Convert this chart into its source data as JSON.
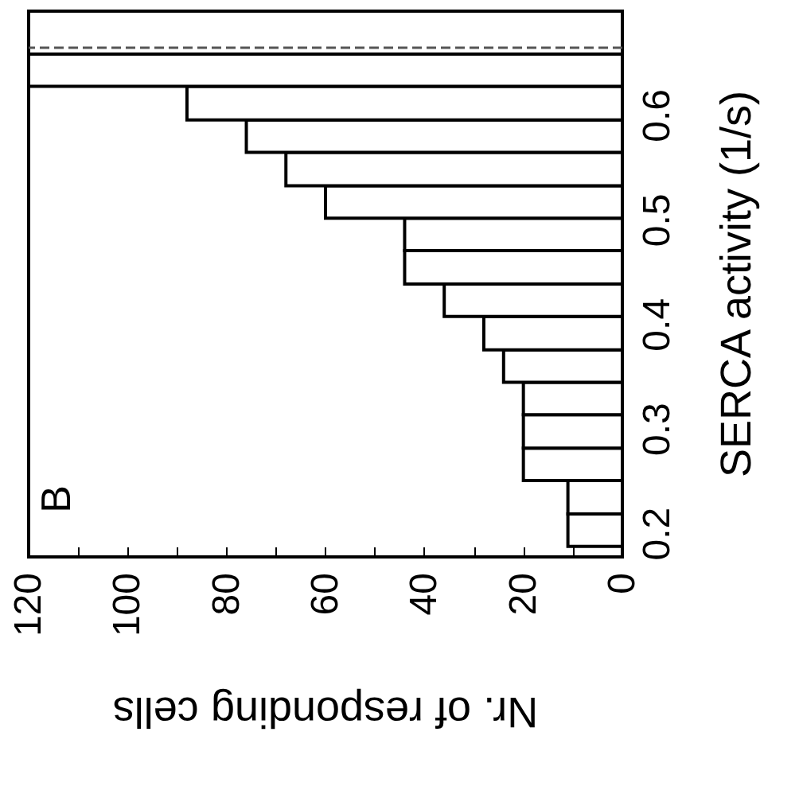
{
  "chart_data": {
    "type": "histogram",
    "orientation": "horizontal",
    "xlabel": "Nr. of responding cells",
    "ylabel": "SERCA activity (1/s)",
    "color": "#ffffff",
    "bins": [
      0.188,
      0.219,
      0.251,
      0.282,
      0.314,
      0.345,
      0.376,
      0.408,
      0.439,
      0.471,
      0.502,
      0.533,
      0.565,
      0.596,
      0.628,
      0.659
    ],
    "values": [
      11,
      11,
      20,
      20,
      20,
      24,
      28,
      36,
      44,
      44,
      60,
      68,
      76,
      88,
      120
    ],
    "xlim": [
      120,
      0
    ],
    "xticks": [
      120,
      {
        "value": 110,
        "label": null
      },
      100,
      {
        "value": 90,
        "label": null
      },
      80,
      {
        "value": 70,
        "label": null
      },
      60,
      {
        "value": 50,
        "label": null
      },
      40,
      {
        "value": 30,
        "label": null
      },
      20,
      {
        "value": 10,
        "label": null
      },
      0
    ],
    "ylim": [
      0.178,
      0.7
    ],
    "yticks": [
      0.2,
      0.3,
      0.4,
      0.5,
      0.6
    ],
    "ref_lines": [
      {
        "axis": "y",
        "value": 0.665,
        "color": "#555555",
        "line_style": "dashed"
      }
    ],
    "annotations": [
      "B"
    ],
    "grid": false,
    "legend": false
  }
}
